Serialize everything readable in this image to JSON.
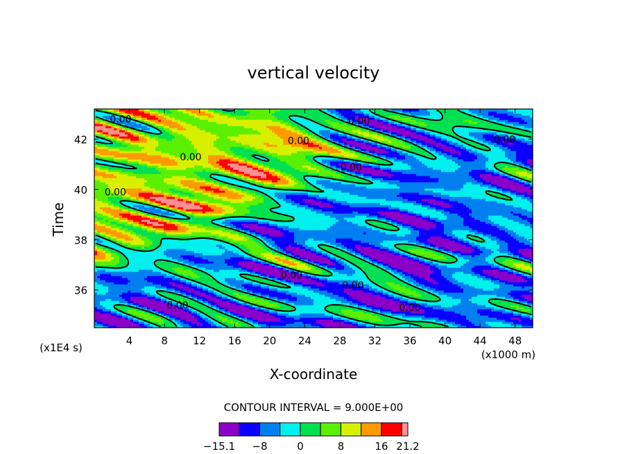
{
  "chart_data": {
    "type": "heatmap",
    "title": "vertical velocity",
    "xlabel": "X-coordinate",
    "ylabel": "Time",
    "x_unit_label": "(x1000 m)",
    "y_unit_label": "(x1E4 s)",
    "xlim": [
      0,
      50
    ],
    "ylim": [
      34.5,
      43.2
    ],
    "x_ticks": [
      4,
      8,
      12,
      16,
      20,
      24,
      28,
      32,
      36,
      40,
      44,
      48
    ],
    "x_tick_labels": [
      "4",
      "8",
      "12",
      "16",
      "20",
      "24",
      "28",
      "32",
      "36",
      "40",
      "44",
      "48"
    ],
    "y_ticks": [
      36,
      38,
      40,
      42
    ],
    "y_tick_labels": [
      "36",
      "38",
      "40",
      "42"
    ],
    "contour_interval_text": "CONTOUR INTERVAL = 9.000E+00",
    "colorbar": {
      "min": -15.1,
      "max": 21.2,
      "tick_labels": [
        "−15.1",
        "−8",
        "0",
        "8",
        "16",
        "21.2"
      ],
      "tick_values": [
        -15.1,
        -8,
        0,
        8,
        16,
        21.2
      ],
      "bins": [
        {
          "lo": -15.1,
          "hi": -12,
          "color": "#8a00c8"
        },
        {
          "lo": -12,
          "hi": -8,
          "color": "#0a00ff"
        },
        {
          "lo": -8,
          "hi": -4,
          "color": "#0080f0"
        },
        {
          "lo": -4,
          "hi": 0,
          "color": "#00f0ee"
        },
        {
          "lo": 0,
          "hi": 4,
          "color": "#00e050"
        },
        {
          "lo": 4,
          "hi": 8,
          "color": "#5af000"
        },
        {
          "lo": 8,
          "hi": 12,
          "color": "#d8f000"
        },
        {
          "lo": 12,
          "hi": 16,
          "color": "#ff9a00"
        },
        {
          "lo": 16,
          "hi": 20,
          "color": "#ff0000"
        },
        {
          "lo": 20,
          "hi": 21.2,
          "color": "#ff9090"
        }
      ]
    },
    "contour_labels": [
      {
        "text": "0.00",
        "x": 3.0,
        "y": 42.8
      },
      {
        "text": "0.00",
        "x": 30.2,
        "y": 42.75
      },
      {
        "text": "0.00",
        "x": 23.3,
        "y": 41.95
      },
      {
        "text": "0.00",
        "x": 46.8,
        "y": 42.0
      },
      {
        "text": "0.00",
        "x": 11.0,
        "y": 41.3
      },
      {
        "text": "0.00",
        "x": 29.3,
        "y": 40.9
      },
      {
        "text": "0.00",
        "x": 2.4,
        "y": 39.9
      },
      {
        "text": "0.00",
        "x": 22.5,
        "y": 36.6
      },
      {
        "text": "0.00",
        "x": 29.5,
        "y": 36.2
      },
      {
        "text": "0.00",
        "x": 9.5,
        "y": 35.4
      },
      {
        "text": "0.00",
        "x": 36.0,
        "y": 35.3
      }
    ]
  }
}
